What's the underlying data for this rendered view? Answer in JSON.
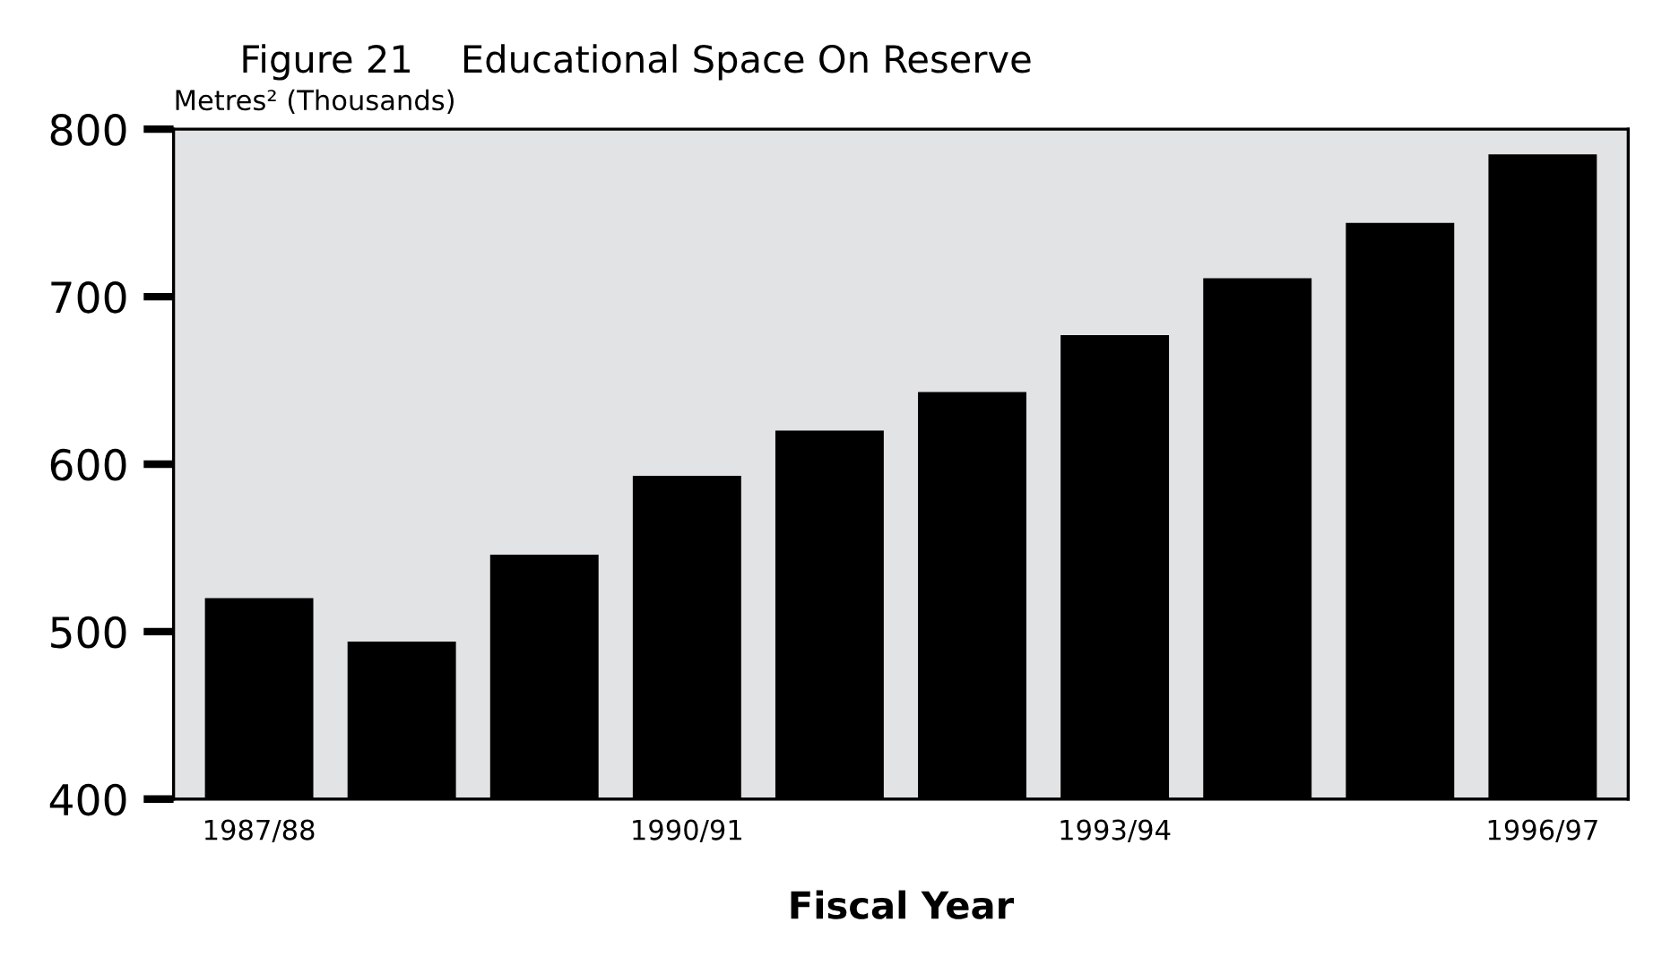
{
  "chart_data": {
    "type": "bar",
    "title": "Figure 21    Educational Space On Reserve",
    "ylabel": "Metres² (Thousands)",
    "xlabel": "Fiscal Year",
    "categories": [
      "1987/88",
      null,
      null,
      "1990/91",
      null,
      null,
      "1993/94",
      null,
      null,
      "1996/97"
    ],
    "values": [
      520,
      494,
      546,
      593,
      620,
      643,
      677,
      711,
      744,
      785
    ],
    "color": "#000000",
    "ylim": [
      400,
      800
    ],
    "yticks": [
      400,
      500,
      600,
      700,
      800
    ],
    "grid": false,
    "legend": false
  }
}
